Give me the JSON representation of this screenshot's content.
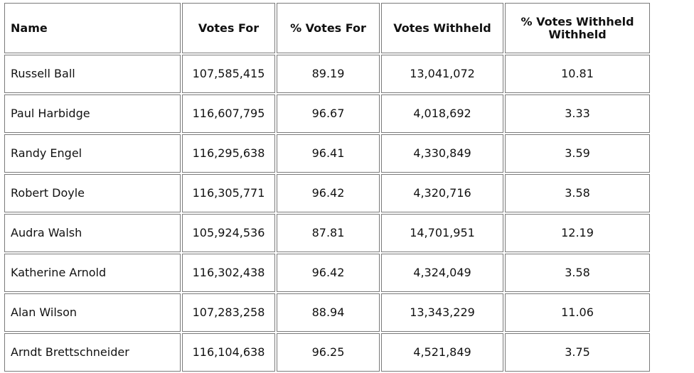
{
  "table": {
    "headers": {
      "name": "Name",
      "votes_for": "Votes For",
      "pct_votes_for": "% Votes For",
      "votes_withheld": "Votes Withheld",
      "pct_votes_withheld": "% Votes Withheld Withheld"
    },
    "rows": [
      {
        "name": "Russell Ball",
        "votes_for": "107,585,415",
        "pct_votes_for": "89.19",
        "votes_withheld": "13,041,072",
        "pct_votes_withheld": "10.81"
      },
      {
        "name": "Paul Harbidge",
        "votes_for": "116,607,795",
        "pct_votes_for": "96.67",
        "votes_withheld": "4,018,692",
        "pct_votes_withheld": "3.33"
      },
      {
        "name": "Randy Engel",
        "votes_for": "116,295,638",
        "pct_votes_for": "96.41",
        "votes_withheld": "4,330,849",
        "pct_votes_withheld": "3.59"
      },
      {
        "name": "Robert Doyle",
        "votes_for": "116,305,771",
        "pct_votes_for": "96.42",
        "votes_withheld": "4,320,716",
        "pct_votes_withheld": "3.58"
      },
      {
        "name": "Audra Walsh",
        "votes_for": "105,924,536",
        "pct_votes_for": "87.81",
        "votes_withheld": "14,701,951",
        "pct_votes_withheld": "12.19"
      },
      {
        "name": "Katherine Arnold",
        "votes_for": "116,302,438",
        "pct_votes_for": "96.42",
        "votes_withheld": "4,324,049",
        "pct_votes_withheld": "3.58"
      },
      {
        "name": "Alan Wilson",
        "votes_for": "107,283,258",
        "pct_votes_for": "88.94",
        "votes_withheld": "13,343,229",
        "pct_votes_withheld": "11.06"
      },
      {
        "name": "Arndt Brettschneider",
        "votes_for": "116,104,638",
        "pct_votes_for": "96.25",
        "votes_withheld": "4,521,849",
        "pct_votes_withheld": "3.75"
      }
    ]
  }
}
